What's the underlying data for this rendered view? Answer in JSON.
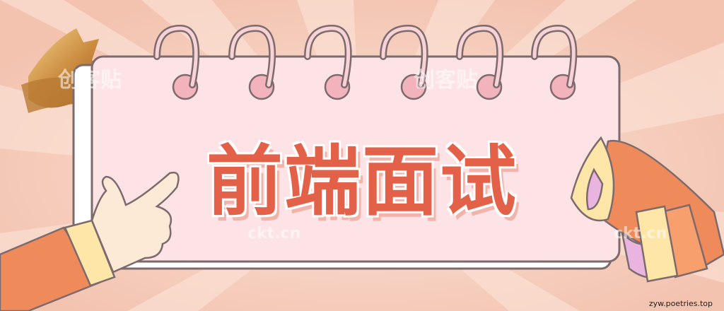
{
  "banner": {
    "title": "前端面试",
    "watermark_logo": "创客贴",
    "watermark_site": "ckt.cn",
    "url": "zyw.poetries.top"
  },
  "colors": {
    "background": "#f6cfc0",
    "card": "#fde3e5",
    "title": "#e36148",
    "outline": "#7d6a6d"
  },
  "icons": [
    "calendar-icon",
    "pointing-hand-icon",
    "megaphone-icon",
    "ribbon-icon"
  ]
}
